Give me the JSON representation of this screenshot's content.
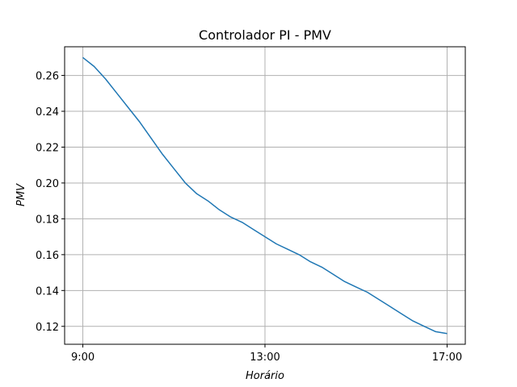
{
  "chart_data": {
    "type": "line",
    "title": "Controlador PI - PMV",
    "xlabel": "Horário",
    "ylabel": "PMV",
    "x_ticks": [
      "9:00",
      "13:00",
      "17:00"
    ],
    "xlim_hours": [
      8.6,
      17.4
    ],
    "ylim": [
      0.11,
      0.276
    ],
    "y_ticks": [
      0.12,
      0.14,
      0.16,
      0.18,
      0.2,
      0.22,
      0.24,
      0.26
    ],
    "y_tick_labels": [
      "0.12",
      "0.14",
      "0.16",
      "0.18",
      "0.20",
      "0.22",
      "0.24",
      "0.26"
    ],
    "grid": true,
    "series": [
      {
        "color": "#1f77b4",
        "x_hours": [
          9.0,
          9.25,
          9.5,
          9.75,
          10.0,
          10.25,
          10.5,
          10.75,
          11.0,
          11.25,
          11.5,
          11.75,
          12.0,
          12.25,
          12.5,
          12.75,
          13.0,
          13.25,
          13.5,
          13.75,
          14.0,
          14.25,
          14.5,
          14.75,
          15.0,
          15.25,
          15.5,
          15.75,
          16.0,
          16.25,
          16.5,
          16.75,
          17.0
        ],
        "values": [
          0.27,
          0.265,
          0.258,
          0.25,
          0.242,
          0.234,
          0.225,
          0.216,
          0.208,
          0.2,
          0.194,
          0.19,
          0.185,
          0.181,
          0.178,
          0.174,
          0.17,
          0.166,
          0.163,
          0.16,
          0.156,
          0.153,
          0.149,
          0.145,
          0.142,
          0.139,
          0.135,
          0.131,
          0.127,
          0.123,
          0.12,
          0.117,
          0.116
        ]
      }
    ]
  }
}
